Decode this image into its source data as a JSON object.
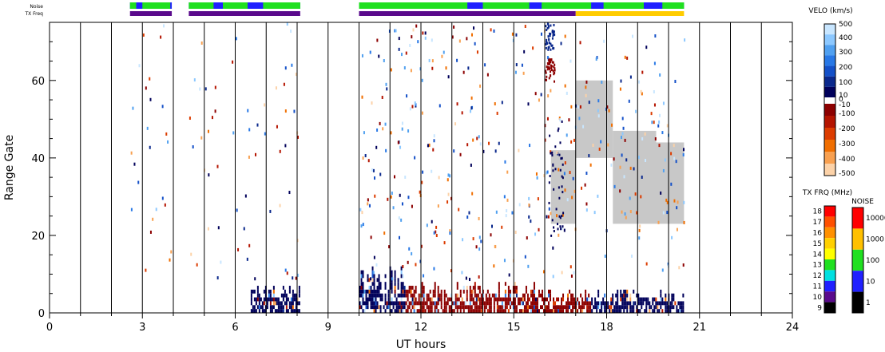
{
  "chart_data": {
    "type": "scatter",
    "xlabel": "UT hours",
    "ylabel": "Range Gate",
    "xlim": [
      0,
      24
    ],
    "ylim": [
      0,
      75
    ],
    "x_ticks": [
      0,
      3,
      6,
      9,
      12,
      15,
      18,
      21,
      24
    ],
    "y_ticks": [
      0,
      20,
      40,
      60
    ],
    "vertical_grid_hours": [
      1,
      2,
      3,
      4,
      5,
      6,
      7,
      8,
      9,
      10,
      11,
      12,
      13,
      14,
      15,
      16,
      17,
      18,
      19,
      20,
      21,
      22,
      23
    ],
    "top_bars": {
      "noise_label": "Noise",
      "txfreq_label": "TX Freq",
      "noise_segments": [
        {
          "x0": 2.6,
          "x1": 3.95,
          "color": "#2020ff"
        },
        {
          "x0": 4.5,
          "x1": 8.1,
          "color": "#2020ff"
        },
        {
          "x0": 10.0,
          "x1": 20.5,
          "color": "#2020ff"
        }
      ],
      "noise_green_segments": [
        {
          "x0": 2.6,
          "x1": 2.8
        },
        {
          "x0": 3.0,
          "x1": 3.9
        },
        {
          "x0": 4.5,
          "x1": 5.3
        },
        {
          "x0": 5.6,
          "x1": 6.4
        },
        {
          "x0": 6.9,
          "x1": 8.1
        },
        {
          "x0": 10.0,
          "x1": 13.5
        },
        {
          "x0": 14.0,
          "x1": 15.5
        },
        {
          "x0": 15.9,
          "x1": 17.5
        },
        {
          "x0": 17.9,
          "x1": 19.2
        },
        {
          "x0": 19.8,
          "x1": 20.5
        }
      ],
      "txfreq_segments": [
        {
          "x0": 2.6,
          "x1": 3.95,
          "color": "#5a0a8c"
        },
        {
          "x0": 4.5,
          "x1": 8.1,
          "color": "#5a0a8c"
        },
        {
          "x0": 10.0,
          "x1": 17.0,
          "color": "#5a0a8c"
        },
        {
          "x0": 17.0,
          "x1": 20.5,
          "color": "#ffcc00"
        }
      ]
    },
    "velocity_colorbar": {
      "title": "VELO (km/s)",
      "positive_labels": [
        "500",
        "400",
        "300",
        "200",
        "100",
        "10",
        "0"
      ],
      "negative_labels": [
        "-10",
        "-100",
        "-200",
        "-300",
        "-400",
        "-500"
      ],
      "positive_colors": [
        "#c8e6ff",
        "#8cc8ff",
        "#50a0f0",
        "#2878e6",
        "#1450c8",
        "#0a288c",
        "#00005a"
      ],
      "negative_colors": [
        "#8c0000",
        "#b41400",
        "#dc3c00",
        "#f06e00",
        "#f8a050",
        "#fcd2a8"
      ]
    },
    "txfreq_colorbar": {
      "title": "TX FRQ (MHz)",
      "labels": [
        "18",
        "17",
        "16",
        "15",
        "14",
        "13",
        "12",
        "11",
        "10",
        "9"
      ],
      "colors": [
        "#ff0000",
        "#ff5000",
        "#ff9000",
        "#ffd000",
        "#ffff00",
        "#20e020",
        "#00e0e0",
        "#2020ff",
        "#5a0a8c",
        "#000000"
      ]
    },
    "noise_colorbar": {
      "title": "NOISE",
      "labels": [
        "10000",
        "1000",
        "100",
        "10",
        "1"
      ],
      "colors": [
        "#ff0000",
        "#ffc000",
        "#20e020",
        "#2020ff",
        "#000000"
      ]
    },
    "gray_regions": [
      {
        "x0": 16.2,
        "x1": 17.0,
        "y0": 23,
        "y1": 42
      },
      {
        "x0": 17.0,
        "x1": 18.2,
        "y0": 40,
        "y1": 60
      },
      {
        "x0": 18.2,
        "x1": 19.6,
        "y0": 23,
        "y1": 47
      },
      {
        "x0": 19.6,
        "x1": 20.5,
        "y0": 23,
        "y1": 44
      }
    ],
    "dense_regions": [
      {
        "x0": 6.5,
        "x1": 8.1,
        "y0": 0,
        "y1": 7,
        "color": "#00005a"
      },
      {
        "x0": 10.0,
        "x1": 11.5,
        "y0": 0,
        "y1": 12,
        "color": "#00005a"
      },
      {
        "x0": 11.5,
        "x1": 16.0,
        "y0": 0,
        "y1": 8,
        "color": "#8c0000"
      },
      {
        "x0": 16.0,
        "x1": 17.5,
        "y0": 0,
        "y1": 6,
        "color": "#8c0000"
      },
      {
        "x0": 17.5,
        "x1": 20.5,
        "y0": 0,
        "y1": 6,
        "color": "#00005a"
      }
    ]
  }
}
